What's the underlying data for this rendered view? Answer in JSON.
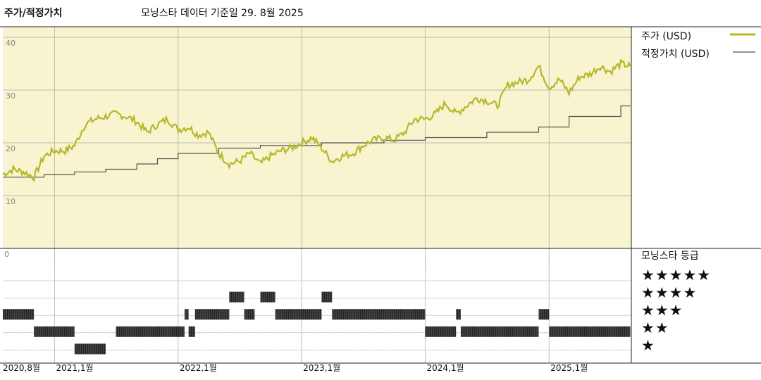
{
  "header": {
    "title": "주가/적정가치",
    "source_note": "모닝스타 데이터 기준일 29. 8월 2025"
  },
  "legend": {
    "price_label": "주가 (USD)",
    "fair_label": "적정가치 (USD)",
    "rating_title": "모닝스타 등급",
    "star_rows": [
      "★★★★★",
      "★★★★",
      "★★★",
      "★★",
      "★"
    ]
  },
  "colors": {
    "price": "#b5b82c",
    "fair": "#555555",
    "top_panel_bg": "#f8f4cf",
    "grid": "#bbbbbb",
    "rating_bar": "#222222"
  },
  "chart_data": {
    "type": "line",
    "title": "주가/적정가치",
    "y_ticks": [
      "40",
      "30",
      "20",
      "10"
    ],
    "ylim": [
      0,
      42
    ],
    "x_range": [
      "2020-08-01",
      "2025-09-01"
    ],
    "x_tick_labels": [
      {
        "label": "2020,8월",
        "date": "2020-08-01"
      },
      {
        "label": "2021,1월",
        "date": "2021-01-01"
      },
      {
        "label": "2022,1월",
        "date": "2022-01-01"
      },
      {
        "label": "2023,1월",
        "date": "2023-01-01"
      },
      {
        "label": "2024,1월",
        "date": "2024-01-01"
      },
      {
        "label": "2025,1월",
        "date": "2025-01-01"
      }
    ],
    "series": [
      {
        "name": "주가 (USD)",
        "points": [
          [
            "2020-08-01",
            14.0
          ],
          [
            "2020-09-01",
            15.0
          ],
          [
            "2020-10-01",
            14.5
          ],
          [
            "2020-11-01",
            13.5
          ],
          [
            "2020-12-01",
            17.5
          ],
          [
            "2021-01-01",
            18.5
          ],
          [
            "2021-02-01",
            18.5
          ],
          [
            "2021-03-01",
            19.5
          ],
          [
            "2021-04-01",
            23.5
          ],
          [
            "2021-05-01",
            24.5
          ],
          [
            "2021-06-01",
            25.0
          ],
          [
            "2021-07-01",
            25.5
          ],
          [
            "2021-08-01",
            25.0
          ],
          [
            "2021-09-01",
            24.0
          ],
          [
            "2021-10-01",
            22.0
          ],
          [
            "2021-11-01",
            23.5
          ],
          [
            "2021-12-01",
            24.5
          ],
          [
            "2022-01-01",
            22.5
          ],
          [
            "2022-02-01",
            23.0
          ],
          [
            "2022-03-01",
            21.5
          ],
          [
            "2022-04-01",
            22.0
          ],
          [
            "2022-05-01",
            18.0
          ],
          [
            "2022-06-01",
            16.0
          ],
          [
            "2022-07-01",
            16.5
          ],
          [
            "2022-08-01",
            18.0
          ],
          [
            "2022-09-01",
            16.0
          ],
          [
            "2022-10-01",
            17.5
          ],
          [
            "2022-11-01",
            18.5
          ],
          [
            "2022-12-01",
            19.0
          ],
          [
            "2023-01-01",
            20.0
          ],
          [
            "2023-02-01",
            21.0
          ],
          [
            "2023-03-01",
            19.0
          ],
          [
            "2023-04-01",
            16.5
          ],
          [
            "2023-05-01",
            17.5
          ],
          [
            "2023-06-01",
            18.0
          ],
          [
            "2023-07-01",
            19.5
          ],
          [
            "2023-08-01",
            20.5
          ],
          [
            "2023-09-01",
            21.0
          ],
          [
            "2023-10-01",
            20.5
          ],
          [
            "2023-11-01",
            22.0
          ],
          [
            "2023-12-01",
            24.5
          ],
          [
            "2024-01-01",
            24.5
          ],
          [
            "2024-02-01",
            25.5
          ],
          [
            "2024-03-01",
            27.5
          ],
          [
            "2024-04-01",
            25.5
          ],
          [
            "2024-05-01",
            27.0
          ],
          [
            "2024-06-01",
            28.5
          ],
          [
            "2024-07-01",
            28.0
          ],
          [
            "2024-08-01",
            27.0
          ],
          [
            "2024-09-01",
            31.0
          ],
          [
            "2024-10-01",
            31.5
          ],
          [
            "2024-11-01",
            32.0
          ],
          [
            "2024-12-01",
            34.5
          ],
          [
            "2025-01-01",
            30.5
          ],
          [
            "2025-02-01",
            32.0
          ],
          [
            "2025-03-01",
            29.5
          ],
          [
            "2025-04-01",
            32.5
          ],
          [
            "2025-05-01",
            33.0
          ],
          [
            "2025-06-01",
            34.5
          ],
          [
            "2025-07-01",
            33.5
          ],
          [
            "2025-08-01",
            35.0
          ],
          [
            "2025-08-29",
            34.5
          ]
        ]
      },
      {
        "name": "적정가치 (USD)",
        "points": [
          [
            "2020-08-01",
            13.5
          ],
          [
            "2020-12-01",
            14.0
          ],
          [
            "2021-03-01",
            14.5
          ],
          [
            "2021-06-01",
            15.0
          ],
          [
            "2021-09-01",
            16.0
          ],
          [
            "2021-11-01",
            17.0
          ],
          [
            "2022-01-01",
            18.0
          ],
          [
            "2022-05-01",
            19.0
          ],
          [
            "2022-09-01",
            19.5
          ],
          [
            "2023-03-01",
            20.0
          ],
          [
            "2023-09-01",
            20.5
          ],
          [
            "2024-01-01",
            21.0
          ],
          [
            "2024-07-01",
            22.0
          ],
          [
            "2024-12-01",
            23.0
          ],
          [
            "2025-03-01",
            25.0
          ],
          [
            "2025-08-01",
            27.0
          ],
          [
            "2025-08-29",
            27.0
          ]
        ]
      }
    ],
    "rating_history": [
      {
        "stars": 3,
        "from": "2020-08-01",
        "to": "2020-11-01"
      },
      {
        "stars": 2,
        "from": "2020-11-01",
        "to": "2021-03-01"
      },
      {
        "stars": 1,
        "from": "2021-03-01",
        "to": "2021-06-01"
      },
      {
        "stars": 2,
        "from": "2021-07-01",
        "to": "2021-12-01"
      },
      {
        "stars": 2,
        "from": "2021-12-01",
        "to": "2022-01-20"
      },
      {
        "stars": 3,
        "from": "2022-01-20",
        "to": "2022-02-01"
      },
      {
        "stars": 2,
        "from": "2022-02-01",
        "to": "2022-02-20"
      },
      {
        "stars": 3,
        "from": "2022-02-20",
        "to": "2022-06-01"
      },
      {
        "stars": 4,
        "from": "2022-06-01",
        "to": "2022-07-15"
      },
      {
        "stars": 3,
        "from": "2022-07-15",
        "to": "2022-08-15"
      },
      {
        "stars": 4,
        "from": "2022-09-01",
        "to": "2022-10-15"
      },
      {
        "stars": 3,
        "from": "2022-10-15",
        "to": "2023-03-01"
      },
      {
        "stars": 4,
        "from": "2023-03-01",
        "to": "2023-04-01"
      },
      {
        "stars": 3,
        "from": "2023-04-01",
        "to": "2024-01-01"
      },
      {
        "stars": 2,
        "from": "2024-01-01",
        "to": "2024-04-01"
      },
      {
        "stars": 3,
        "from": "2024-04-01",
        "to": "2024-04-15"
      },
      {
        "stars": 2,
        "from": "2024-04-15",
        "to": "2024-12-01"
      },
      {
        "stars": 3,
        "from": "2024-12-01",
        "to": "2025-01-01"
      },
      {
        "stars": 2,
        "from": "2025-01-01",
        "to": "2025-08-29"
      }
    ]
  }
}
